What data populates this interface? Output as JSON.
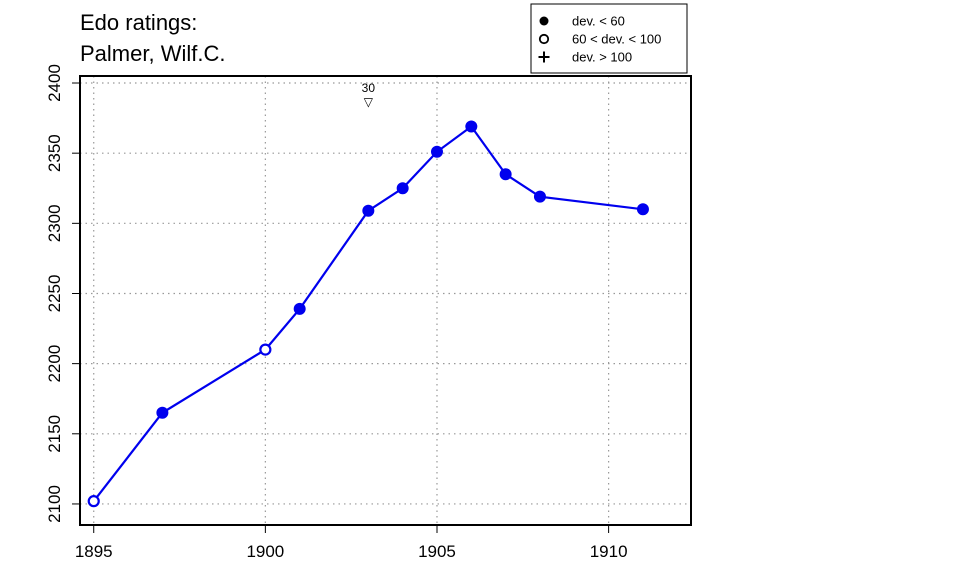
{
  "chart_data": {
    "type": "line",
    "title_lines": [
      "Edo ratings:",
      "Palmer, Wilf.C."
    ],
    "xlabel": "",
    "ylabel": "",
    "xlim": [
      1894.6,
      1912.4
    ],
    "ylim": [
      2085,
      2405
    ],
    "x_ticks": [
      1895,
      1900,
      1905,
      1910
    ],
    "y_ticks": [
      2100,
      2150,
      2200,
      2250,
      2300,
      2350,
      2400
    ],
    "grid": true,
    "line_color": "#0000ee",
    "points": [
      {
        "x": 1895,
        "y": 2102,
        "marker": "open"
      },
      {
        "x": 1897,
        "y": 2165,
        "marker": "filled"
      },
      {
        "x": 1900,
        "y": 2210,
        "marker": "open"
      },
      {
        "x": 1901,
        "y": 2239,
        "marker": "filled"
      },
      {
        "x": 1903,
        "y": 2309,
        "marker": "filled"
      },
      {
        "x": 1904,
        "y": 2325,
        "marker": "filled"
      },
      {
        "x": 1905,
        "y": 2351,
        "marker": "filled"
      },
      {
        "x": 1906,
        "y": 2369,
        "marker": "filled"
      },
      {
        "x": 1907,
        "y": 2335,
        "marker": "filled"
      },
      {
        "x": 1908,
        "y": 2319,
        "marker": "filled"
      },
      {
        "x": 1911,
        "y": 2310,
        "marker": "filled"
      }
    ],
    "annotations": [
      {
        "x": 1903,
        "label": "30",
        "symbol": "▽"
      }
    ],
    "legend": {
      "placement": "top-right",
      "entries": [
        {
          "symbol": "filled",
          "label": "dev. < 60"
        },
        {
          "symbol": "open",
          "label": "60 < dev. < 100"
        },
        {
          "symbol": "plus",
          "label": "dev. > 100"
        }
      ]
    }
  }
}
